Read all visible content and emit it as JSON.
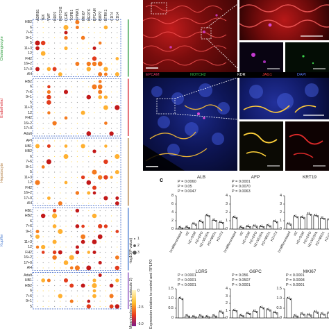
{
  "panel_c_label": "c",
  "dotplot": {
    "genes": [
      "ADRB1",
      "TEK",
      "VWF",
      "NRP2",
      "NOTCH2",
      "LGR5",
      "TGFB1",
      "SPINK1",
      "MKI67",
      "MERTK",
      "EPCAM",
      "BMP2",
      "NTRK1",
      "CD74",
      "CD14"
    ],
    "groups": [
      {
        "name": "Cholangiocyte",
        "color": "#2a9b3a",
        "rows": [
          "HB2",
          "6",
          "7+6",
          "9+1",
          "5",
          "11+3",
          "12",
          "FH2",
          "16+2",
          "17+0",
          "AH"
        ]
      },
      {
        "name": "Endothelial",
        "color": "#d8222b",
        "rows": [
          "HB2",
          "6",
          "7+6",
          "9+1",
          "5",
          "11+3",
          "12",
          "FH2",
          "16+2",
          "17+0",
          "Adult"
        ]
      },
      {
        "name": "Hepatocyte",
        "color": "#b07a3c",
        "rows": [
          "API",
          "HB1",
          "HB2",
          "6",
          "7+6",
          "8+1",
          "5",
          "11+3",
          "12",
          "FH2",
          "16+2",
          "17+0",
          "AH"
        ]
      },
      {
        "name": "Kupffer",
        "color": "#4a7bd0",
        "rows": [
          "HB1",
          "HB2",
          "6",
          "7+6",
          "9+1",
          "5",
          "11+3",
          "12",
          "FH2",
          "16+2",
          "17+0",
          "AH"
        ]
      },
      {
        "name": "",
        "color": "#8a4fbf",
        "rows": [
          "Adult",
          "HB1",
          "HB2",
          "6",
          "7+6",
          "9+1",
          "5"
        ]
      }
    ],
    "legend": {
      "size_title": "-log10(P value)",
      "size_ticks": [
        "1",
        "2",
        "3"
      ],
      "color_title": "Mean(molecule 1, molecule 2)",
      "color_ticks": [
        "0",
        "-2.5",
        "-5.0"
      ]
    }
  },
  "micrographs": {
    "top_channels": [],
    "bottom_channels": [
      {
        "label": "EPCAM",
        "color": "#e23b6b"
      },
      {
        "label": "NOTCH2",
        "color": "#36c24a"
      },
      {
        "label": "KDR",
        "color": "#ffffff"
      },
      {
        "label": "JAG1",
        "color": "#ff3b3b"
      },
      {
        "label": "DAPI",
        "color": "#5b7cff"
      }
    ]
  },
  "chart_data": [
    {
      "type": "bar",
      "title": "ALB",
      "categories": [
        "Undifferentiated",
        "HZ",
        "HZ+OSM",
        "HZ+EPO",
        "HZ+VEGFA",
        "HZ+NRG1",
        "HZ+C3"
      ],
      "values": [
        0.3,
        0.4,
        1.2,
        1.8,
        3.2,
        2.1,
        1.6
      ],
      "annotations": [
        "P = 0.0060",
        "P = 0.05",
        "P = 0.0047"
      ],
      "ylim": [
        0,
        8
      ],
      "yticks": [
        "0",
        "2",
        "4",
        "6",
        "8"
      ]
    },
    {
      "type": "bar",
      "title": "AFP",
      "categories": [
        "Undifferentiated",
        "HZ",
        "HZ+OSM",
        "HZ+EPO",
        "HZ+VEGFA",
        "HZ+NRG1",
        "HZ+C3"
      ],
      "values": [
        1.4,
        0.2,
        0.3,
        0.35,
        0.3,
        0.4,
        0.9
      ],
      "annotations": [
        "P = 0.0001",
        "P = 0.0070",
        "P = 0.0063"
      ],
      "ylim": [
        0,
        4
      ],
      "yticks": [
        "0",
        "1",
        "2",
        "3",
        "4"
      ]
    },
    {
      "type": "bar",
      "title": "KRT19",
      "categories": [
        "Undifferentiated",
        "HZ",
        "HZ+OSM",
        "HZ+EPO",
        "HZ+VEGFA",
        "HZ+NRG1",
        "HZ+C3"
      ],
      "values": [
        0.6,
        1.5,
        1.4,
        1.8,
        1.6,
        1.3,
        1.1
      ],
      "annotations": [],
      "ylim": [
        0,
        4
      ],
      "yticks": [
        "0",
        "1",
        "2",
        "3",
        "4"
      ]
    },
    {
      "type": "bar",
      "title": "LGR5",
      "categories": [
        "Undifferentiated",
        "HZ",
        "HZ+OSM",
        "HZ+EPO",
        "HZ+VEGFA",
        "HZ+NRG1",
        "HZ+C3"
      ],
      "values": [
        1.0,
        0.1,
        0.05,
        0.1,
        0.05,
        0.1,
        0.3
      ],
      "annotations": [
        "P < 0.0001",
        "P < 0.0001",
        "P < 0.0001"
      ],
      "ylim": [
        0,
        1.5
      ],
      "yticks": [
        "0",
        "0.5",
        "1.0",
        "1.5"
      ]
    },
    {
      "type": "bar",
      "title": "G6PC",
      "categories": [
        "Undifferentiated",
        "HZ",
        "HZ+OSM",
        "HZ+EPO",
        "HZ+VEGFA",
        "HZ+NRG1",
        "HZ+C3"
      ],
      "values": [
        1.0,
        0.3,
        0.6,
        0.9,
        1.4,
        1.1,
        0.7
      ],
      "annotations": [
        "P = 0.056",
        "P = 0.0507",
        "P < 0.0001"
      ],
      "ylim": [
        0,
        4
      ],
      "yticks": [
        "0",
        "1",
        "2",
        "3",
        "4"
      ]
    },
    {
      "type": "bar",
      "title": "MKI67",
      "categories": [
        "Undifferentiated",
        "HZ",
        "HZ+OSM",
        "HZ+EPO",
        "HZ+VEGFA",
        "HZ+NRG1",
        "HZ+C3"
      ],
      "values": [
        1.0,
        0.1,
        0.2,
        0.15,
        0.3,
        0.2,
        0.25
      ],
      "annotations": [
        "P < 0.0001",
        "P = 0.0008",
        "P < 0.0001"
      ],
      "ylim": [
        0,
        1.5
      ],
      "yticks": [
        "0",
        "0.5",
        "1.0",
        "1.5"
      ]
    }
  ],
  "bar_ylabel": "Expression relative to control and RPLP0"
}
